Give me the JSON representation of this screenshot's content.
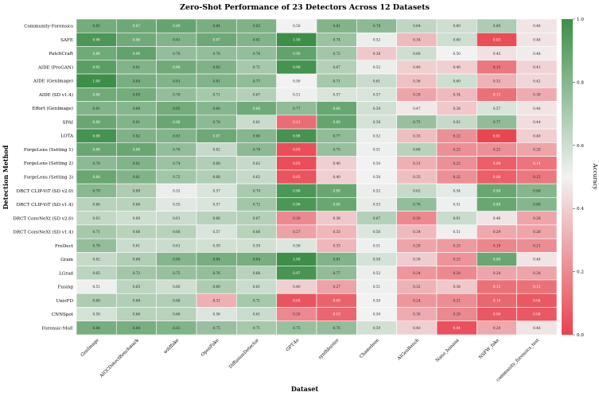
{
  "chart_data": {
    "type": "heatmap",
    "title": "Zero-Shot Performance of 23 Detectors Across 12 Datasets",
    "xlabel": "Dataset",
    "ylabel": "Detection Method",
    "colorbar_label": "Accuracy",
    "vmin": 0.0,
    "vmax": 1.0,
    "colorbar_ticks": [
      "0.0",
      "0.2",
      "0.4",
      "0.6",
      "0.8",
      "1.0"
    ],
    "colorbar_tick_values": [
      0.0,
      0.2,
      0.4,
      0.6,
      0.8,
      1.0
    ],
    "colors": {
      "low": "#e8434f",
      "mid": "#f2f2f2",
      "high": "#3e8e4a"
    },
    "x_categories": [
      "GenImage",
      "AIGCDetectBenchmark",
      "wildfake",
      "OpenFake",
      "DiffusionDetector",
      "GPT-4o",
      "synthbuster",
      "Chameleon",
      "AIGenBench",
      "Nano_banana",
      "NSFW_fake",
      "community_forensics_test"
    ],
    "y_categories": [
      "Community-Forensics",
      "SAFE",
      "PatchCraft",
      "AIDE (ProGAN)",
      "AIDE (GenImage)",
      "AIDE (SD v1.4)",
      "Effort (GenImage)",
      "SPAI",
      "LOTA",
      "ForgeLens (Setting 1)",
      "ForgeLens (Setting 2)",
      "ForgeLens (Setting 3)",
      "DRCT CLIP-ViT (SD v2.0)",
      "DRCT CLIP-ViT (SD v1.4)",
      "DRCT ConvNeXt (SD v2.0)",
      "DRCT ConvNeXt (SD v1.4)",
      "FreDect",
      "Gram",
      "LGrad",
      "Fusing",
      "UnivFD",
      "CNNSpot",
      "Forensic-MoE"
    ],
    "labels": [
      [
        "0.85",
        "0.87",
        "0.89",
        "0.84",
        "0.82",
        "0.50",
        "0.81",
        "0.78",
        "0.64",
        "0.60",
        "0.69",
        "0.46"
      ],
      [
        "0.96",
        "0.86",
        "0.81",
        "0.87",
        "0.81",
        "1.00",
        "0.74",
        "0.52",
        "0.34",
        "0.60",
        "0.03",
        "0.46"
      ],
      [
        "0.86",
        "0.90",
        "0.76",
        "0.76",
        "0.76",
        "0.90",
        "0.72",
        "0.38",
        "0.60",
        "0.50",
        "0.45",
        "0.48"
      ],
      [
        "0.92",
        "0.81",
        "0.86",
        "0.82",
        "0.71",
        "0.98",
        "0.67",
        "0.52",
        "0.40",
        "0.40",
        "0.15",
        "0.41"
      ],
      [
        "1.00",
        "0.84",
        "0.81",
        "0.81",
        "0.77",
        "0.50",
        "0.71",
        "0.61",
        "0.36",
        "0.60",
        "0.32",
        "0.42"
      ],
      [
        "0.86",
        "0.85",
        "0.76",
        "0.71",
        "0.67",
        "0.51",
        "0.57",
        "0.57",
        "0.28",
        "0.34",
        "0.13",
        "0.30"
      ],
      [
        "0.81",
        "0.80",
        "0.85",
        "0.80",
        "0.86",
        "0.77",
        "0.88",
        "0.59",
        "0.47",
        "0.38",
        "0.57",
        "0.46"
      ],
      [
        "0.88",
        "0.81",
        "0.88",
        "0.78",
        "0.61",
        "0.12",
        "0.89",
        "0.58",
        "0.75",
        "0.62",
        "0.77",
        "0.44"
      ],
      [
        "0.98",
        "0.82",
        "0.81",
        "0.87",
        "0.80",
        "0.98",
        "0.77",
        "0.52",
        "0.35",
        "0.22",
        "0.01",
        "0.40"
      ],
      [
        "0.88",
        "0.88",
        "0.76",
        "0.62",
        "0.78",
        "0.03",
        "0.75",
        "0.51",
        "0.66",
        "0.22",
        "0.22",
        "0.28"
      ],
      [
        "0.78",
        "0.81",
        "0.74",
        "0.68",
        "0.62",
        "0.03",
        "0.40",
        "0.50",
        "0.31",
        "0.22",
        "0.08",
        "0.14"
      ],
      [
        "0.88",
        "0.81",
        "0.72",
        "0.68",
        "0.62",
        "0.05",
        "0.40",
        "0.50",
        "0.35",
        "0.22",
        "0.08",
        "0.15"
      ],
      [
        "0.79",
        "0.69",
        "0.52",
        "0.57",
        "0.70",
        "0.96",
        "0.88",
        "0.52",
        "0.62",
        "0.54",
        "0.88",
        "0.80"
      ],
      [
        "0.66",
        "0.66",
        "0.55",
        "0.57",
        "0.72",
        "0.96",
        "0.88",
        "0.53",
        "0.76",
        "0.51",
        "0.88",
        "0.80"
      ],
      [
        "0.63",
        "0.60",
        "0.61",
        "0.66",
        "0.67",
        "0.20",
        "0.38",
        "0.67",
        "0.20",
        "0.61",
        "0.46",
        "0.28"
      ],
      [
        "0.71",
        "0.66",
        "0.66",
        "0.57",
        "0.66",
        "0.27",
        "0.33",
        "0.56",
        "0.34",
        "0.51",
        "0.29",
        "0.28"
      ],
      [
        "0.76",
        "0.61",
        "0.61",
        "0.59",
        "0.59",
        "0.56",
        "0.33",
        "0.51",
        "0.28",
        "0.25",
        "0.19",
        "0.21"
      ],
      [
        "0.62",
        "0.68",
        "0.80",
        "0.84",
        "0.84",
        "1.00",
        "0.81",
        "0.58",
        "0.39",
        "0.23",
        "0.88",
        "0.46"
      ],
      [
        "0.65",
        "0.72",
        "0.75",
        "0.76",
        "0.66",
        "0.97",
        "0.77",
        "0.52",
        "0.24",
        "0.20",
        "0.28",
        "0.28"
      ],
      [
        "0.51",
        "0.65",
        "0.60",
        "0.69",
        "0.61",
        "0.40",
        "0.27",
        "0.51",
        "0.32",
        "0.38",
        "0.13",
        "0.13"
      ],
      [
        "0.69",
        "0.68",
        "0.68",
        "0.31",
        "0.71",
        "0.05",
        "0.09",
        "0.50",
        "0.24",
        "0.21",
        "0.10",
        "0.06"
      ],
      [
        "0.58",
        "0.66",
        "0.66",
        "0.56",
        "0.61",
        "0.20",
        "0.10",
        "0.50",
        "0.30",
        "0.20",
        "0.06",
        "0.06"
      ],
      [
        "0.84",
        "0.84",
        "0.81",
        "0.75",
        "0.71",
        "0.75",
        "0.76",
        "0.59",
        "0.40",
        "0.04",
        "0.29",
        "0.46"
      ]
    ]
  }
}
